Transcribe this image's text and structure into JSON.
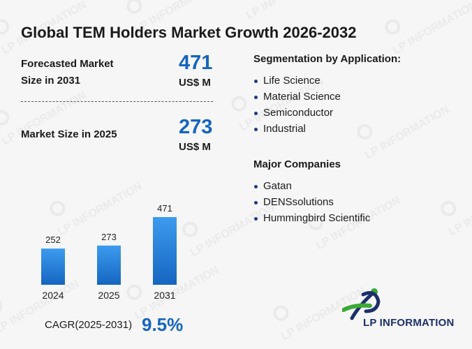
{
  "title": "Global TEM Holders Market Growth 2026-2032",
  "forecast": {
    "label_line1": "Forecasted Market",
    "label_line2": "Size in 2031",
    "value": "471",
    "unit": "US$ M"
  },
  "current": {
    "label": "Market Size in 2025",
    "value": "273",
    "unit": "US$ M"
  },
  "segmentation": {
    "title": "Segmentation by Application:",
    "items": [
      "Life Science",
      "Material Science",
      "Semiconductor",
      "Industrial"
    ]
  },
  "companies": {
    "title": "Major Companies",
    "items": [
      "Gatan",
      "DENSsolutions",
      "Hummingbird Scientific"
    ]
  },
  "cagr": {
    "label": "CAGR(2025-2031)",
    "value": "9.5%"
  },
  "logo": {
    "text": "LP INFORMATION",
    "icon": "lp-information-logo-icon"
  },
  "watermark_text": "LP INFORMATION",
  "colors": {
    "accent": "#1565c0",
    "bar_top": "#3d9bef",
    "bar_bottom": "#1565c0",
    "logo_green": "#3aaa35",
    "logo_navy": "#1b2f6b"
  },
  "chart_data": {
    "type": "bar",
    "categories": [
      "2024",
      "2025",
      "2031"
    ],
    "values": [
      252,
      273,
      471
    ],
    "data_labels": [
      "252",
      "273",
      "471"
    ],
    "title": "",
    "xlabel": "",
    "ylabel": "",
    "ylim": [
      0,
      471
    ],
    "grid": false,
    "legend": "none"
  }
}
